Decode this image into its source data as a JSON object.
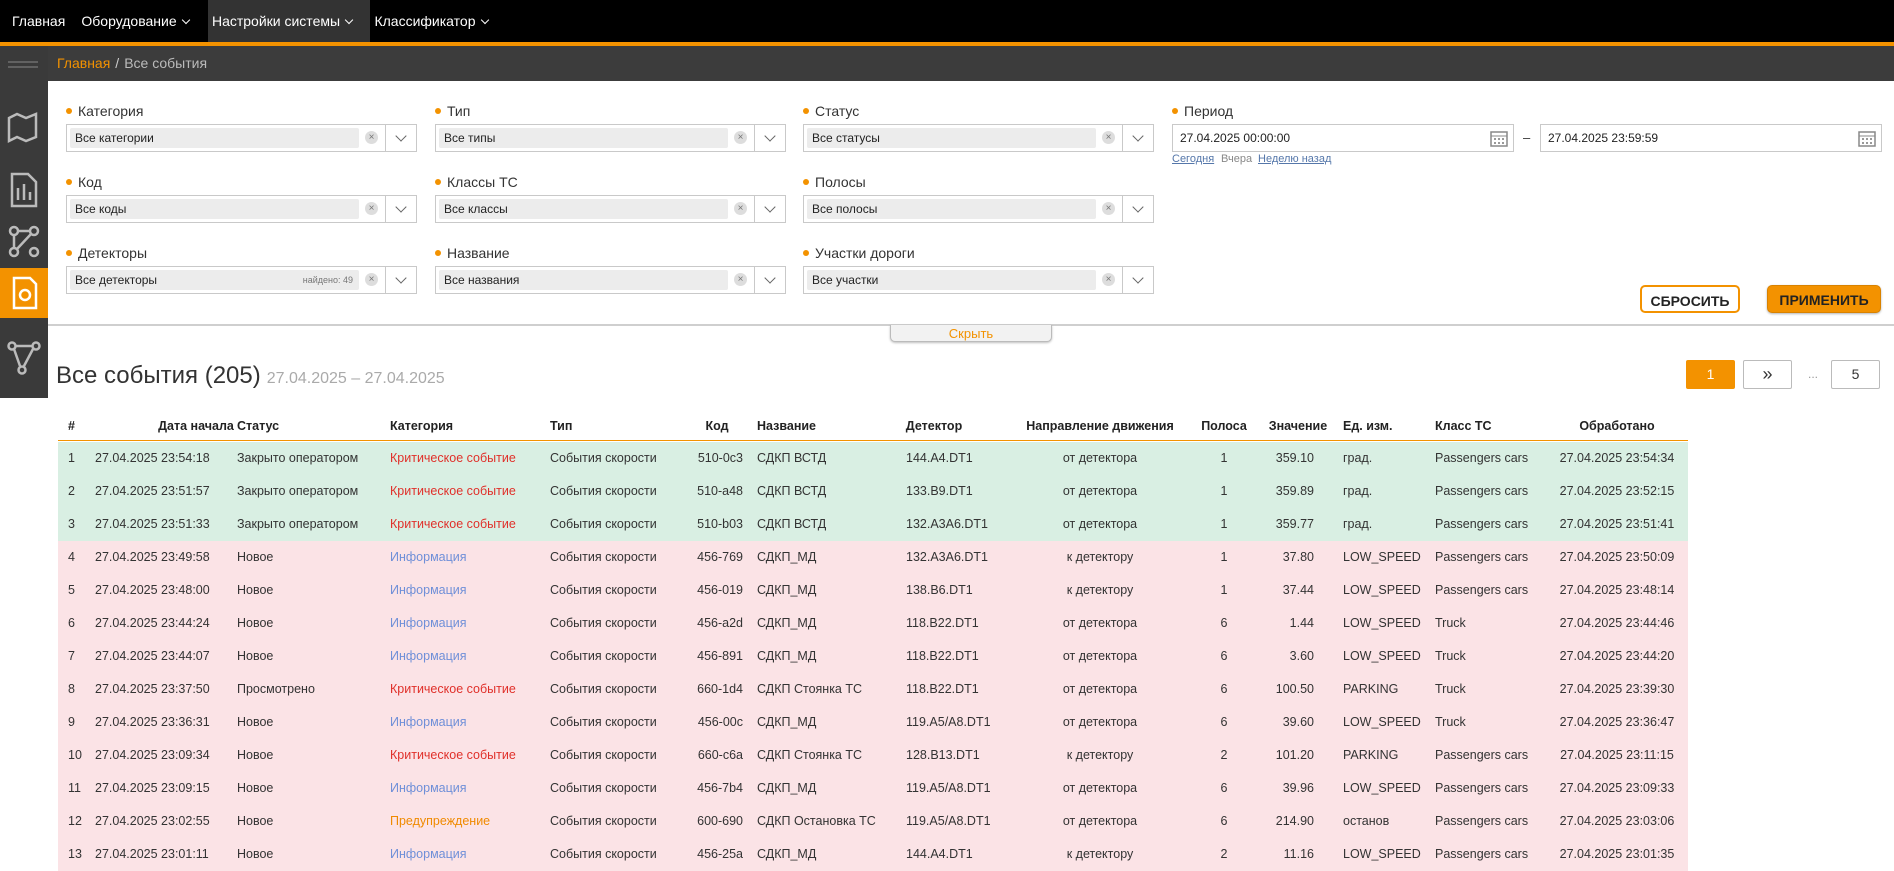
{
  "nav": {
    "items": [
      "Главная",
      "Оборудование",
      "Настройки системы",
      "Классификатор"
    ],
    "active": 2,
    "dropdown": [
      false,
      true,
      true,
      true
    ]
  },
  "breadcrumb": {
    "home": "Главная",
    "separator": "/",
    "current": "Все события"
  },
  "filters": [
    {
      "label": "Категория",
      "value": "Все категории"
    },
    {
      "label": "Тип",
      "value": "Все типы"
    },
    {
      "label": "Статус",
      "value": "Все статусы"
    },
    {
      "label": "Код",
      "value": "Все коды"
    },
    {
      "label": "Классы ТС",
      "value": "Все классы"
    },
    {
      "label": "Полосы",
      "value": "Все полосы"
    },
    {
      "label": "Детекторы",
      "value": "Все детекторы",
      "found": "найдено: 49"
    },
    {
      "label": "Название",
      "value": "Все названия"
    },
    {
      "label": "Участки дороги",
      "value": "Все участки"
    }
  ],
  "period": {
    "label": "Период",
    "from": "27.04.2025 00:00:00",
    "dash": "–",
    "to": "27.04.2025 23:59:59",
    "links": [
      "Сегодня",
      "Вчера",
      "Неделю назад"
    ],
    "underlined": [
      true,
      false,
      true
    ]
  },
  "buttons": {
    "reset": "СБРОСИТЬ",
    "apply": "ПРИМЕНИТЬ"
  },
  "hide": "Скрыть",
  "heading": {
    "title": "Все события (205)",
    "range": "27.04.2025 – 27.04.2025"
  },
  "pagination": {
    "items": [
      "1",
      "»",
      "...",
      "5"
    ],
    "active": 0
  },
  "table": {
    "columns": [
      "#",
      "Дата начала",
      "Статус",
      "Категория",
      "Тип",
      "Код",
      "Название",
      "Детектор",
      "Направление движения",
      "Полоса",
      "Значение",
      "Ед. изм.",
      "Класс ТС",
      "Обработано"
    ],
    "rows": [
      {
        "bg": "#d9efe3",
        "category_color": "#e0302a",
        "cells": [
          "1",
          "27.04.2025 23:54:18",
          "Закрыто оператором",
          "Критическое событие",
          "События скорости",
          "510-0c3",
          "СДКП ВСТД",
          "144.A4.DT1",
          "от детектора",
          "1",
          "359.10",
          "град.",
          "Passengers cars",
          "27.04.2025 23:54:34"
        ]
      },
      {
        "bg": "#d9efe3",
        "category_color": "#e0302a",
        "cells": [
          "2",
          "27.04.2025 23:51:57",
          "Закрыто оператором",
          "Критическое событие",
          "События скорости",
          "510-a48",
          "СДКП ВСТД",
          "133.B9.DT1",
          "от детектора",
          "1",
          "359.89",
          "град.",
          "Passengers cars",
          "27.04.2025 23:52:15"
        ]
      },
      {
        "bg": "#d9efe3",
        "category_color": "#e0302a",
        "cells": [
          "3",
          "27.04.2025 23:51:33",
          "Закрыто оператором",
          "Критическое событие",
          "События скорости",
          "510-b03",
          "СДКП ВСТД",
          "132.A3A6.DT1",
          "от детектора",
          "1",
          "359.77",
          "град.",
          "Passengers cars",
          "27.04.2025 23:51:41"
        ]
      },
      {
        "bg": "#fbe3e6",
        "category_color": "#6f8fd8",
        "cells": [
          "4",
          "27.04.2025 23:49:58",
          "Новое",
          "Информация",
          "События скорости",
          "456-769",
          "СДКП_МД",
          "132.A3A6.DT1",
          "к детектору",
          "1",
          "37.80",
          "LOW_SPEED",
          "Passengers cars",
          "27.04.2025 23:50:09"
        ]
      },
      {
        "bg": "#fbe3e6",
        "category_color": "#6f8fd8",
        "cells": [
          "5",
          "27.04.2025 23:48:00",
          "Новое",
          "Информация",
          "События скорости",
          "456-019",
          "СДКП_МД",
          "138.B6.DT1",
          "к детектору",
          "1",
          "37.44",
          "LOW_SPEED",
          "Passengers cars",
          "27.04.2025 23:48:14"
        ]
      },
      {
        "bg": "#fbe3e6",
        "category_color": "#6f8fd8",
        "cells": [
          "6",
          "27.04.2025 23:44:24",
          "Новое",
          "Информация",
          "События скорости",
          "456-a2d",
          "СДКП_МД",
          "118.B22.DT1",
          "от детектора",
          "6",
          "1.44",
          "LOW_SPEED",
          "Truck",
          "27.04.2025 23:44:46"
        ]
      },
      {
        "bg": "#fbe3e6",
        "category_color": "#6f8fd8",
        "cells": [
          "7",
          "27.04.2025 23:44:07",
          "Новое",
          "Информация",
          "События скорости",
          "456-891",
          "СДКП_МД",
          "118.B22.DT1",
          "от детектора",
          "6",
          "3.60",
          "LOW_SPEED",
          "Truck",
          "27.04.2025 23:44:20"
        ]
      },
      {
        "bg": "#fbe3e6",
        "category_color": "#e0302a",
        "cells": [
          "8",
          "27.04.2025 23:37:50",
          "Просмотрено",
          "Критическое событие",
          "События скорости",
          "660-1d4",
          "СДКП Стоянка ТС",
          "118.B22.DT1",
          "от детектора",
          "6",
          "100.50",
          "PARKING",
          "Truck",
          "27.04.2025 23:39:30"
        ]
      },
      {
        "bg": "#fbe3e6",
        "category_color": "#6f8fd8",
        "cells": [
          "9",
          "27.04.2025 23:36:31",
          "Новое",
          "Информация",
          "События скорости",
          "456-00c",
          "СДКП_МД",
          "119.A5/A8.DT1",
          "от детектора",
          "6",
          "39.60",
          "LOW_SPEED",
          "Truck",
          "27.04.2025 23:36:47"
        ]
      },
      {
        "bg": "#fbe3e6",
        "category_color": "#e0302a",
        "cells": [
          "10",
          "27.04.2025 23:09:34",
          "Новое",
          "Критическое событие",
          "События скорости",
          "660-c6a",
          "СДКП Стоянка ТС",
          "128.B13.DT1",
          "к детектору",
          "2",
          "101.20",
          "PARKING",
          "Passengers cars",
          "27.04.2025 23:11:15"
        ]
      },
      {
        "bg": "#fbe3e6",
        "category_color": "#6f8fd8",
        "cells": [
          "11",
          "27.04.2025 23:09:15",
          "Новое",
          "Информация",
          "События скорости",
          "456-7b4",
          "СДКП_МД",
          "119.A5/A8.DT1",
          "от детектора",
          "6",
          "39.96",
          "LOW_SPEED",
          "Passengers cars",
          "27.04.2025 23:09:33"
        ]
      },
      {
        "bg": "#fbe3e6",
        "category_color": "#f08a00",
        "cells": [
          "12",
          "27.04.2025 23:02:55",
          "Новое",
          "Предупреждение",
          "События скорости",
          "600-690",
          "СДКП Остановка ТС",
          "119.A5/A8.DT1",
          "от детектора",
          "6",
          "214.90",
          "останов",
          "Passengers cars",
          "27.04.2025 23:03:06"
        ]
      },
      {
        "bg": "#fbe3e6",
        "category_color": "#6f8fd8",
        "cells": [
          "13",
          "27.04.2025 23:01:11",
          "Новое",
          "Информация",
          "События скорости",
          "456-25a",
          "СДКП_МД",
          "144.A4.DT1",
          "к детектору",
          "2",
          "11.16",
          "LOW_SPEED",
          "Passengers cars",
          "27.04.2025 23:01:35"
        ]
      }
    ]
  }
}
